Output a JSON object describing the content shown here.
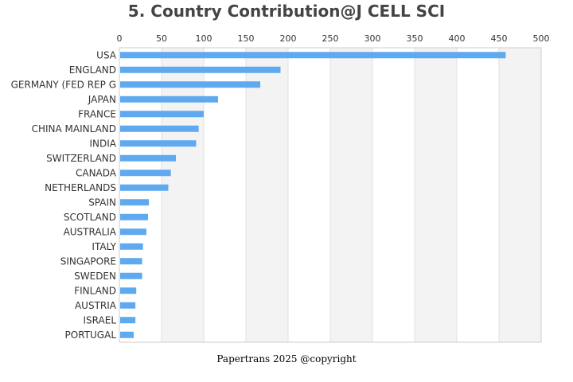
{
  "chart_data": {
    "type": "bar",
    "orientation": "horizontal",
    "title": "5. Country Contribution@J CELL SCI",
    "xlabel": "",
    "ylabel": "",
    "xlim": [
      0,
      500
    ],
    "xticks": [
      0,
      50,
      100,
      150,
      200,
      250,
      300,
      350,
      400,
      450,
      500
    ],
    "x_axis_position": "top",
    "grid": true,
    "categories": [
      "USA",
      "ENGLAND",
      "GERMANY (FED REP G",
      "JAPAN",
      "FRANCE",
      "CHINA MAINLAND",
      "INDIA",
      "SWITZERLAND",
      "CANADA",
      "NETHERLANDS",
      "SPAIN",
      "SCOTLAND",
      "AUSTRALIA",
      "ITALY",
      "SINGAPORE",
      "SWEDEN",
      "FINLAND",
      "AUSTRIA",
      "ISRAEL",
      "PORTUGAL"
    ],
    "values": [
      458,
      191,
      167,
      117,
      100,
      94,
      91,
      67,
      61,
      58,
      35,
      34,
      32,
      28,
      27,
      27,
      20,
      19,
      19,
      17
    ],
    "bar_color": "#5ea9f0"
  },
  "footer": {
    "text": "Papertrans 2025 @copyright"
  }
}
